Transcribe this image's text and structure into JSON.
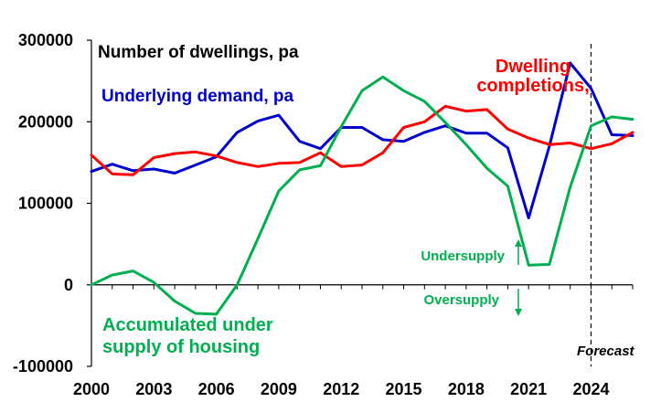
{
  "chart_data": {
    "type": "line",
    "title": "Number of dwellings, pa",
    "xlabel": "",
    "ylabel": "",
    "xlim": [
      2000,
      2026
    ],
    "ylim": [
      -100000,
      300000
    ],
    "x_ticks": [
      2000,
      2003,
      2006,
      2009,
      2012,
      2015,
      2018,
      2021,
      2024
    ],
    "y_ticks": [
      -100000,
      0,
      100000,
      200000,
      300000
    ],
    "forecast_line_x": 2024,
    "forecast_label": "Forecast",
    "x": [
      2000,
      2001,
      2002,
      2003,
      2004,
      2005,
      2006,
      2007,
      2008,
      2009,
      2010,
      2011,
      2012,
      2013,
      2014,
      2015,
      2016,
      2017,
      2018,
      2019,
      2020,
      2021,
      2022,
      2023,
      2024,
      2025,
      2026
    ],
    "series": [
      {
        "name": "Underlying demand, pa",
        "color": "#0000cc",
        "values": [
          139000,
          148000,
          140000,
          142000,
          137000,
          147000,
          157000,
          187000,
          201000,
          208000,
          176000,
          167000,
          193000,
          193000,
          178000,
          176000,
          187000,
          195000,
          186000,
          186000,
          168000,
          82000,
          170000,
          272000,
          241000,
          184000,
          183000
        ]
      },
      {
        "name": "Dwelling completions,",
        "color": "#ff0000",
        "values": [
          159000,
          136000,
          135000,
          156000,
          161000,
          163000,
          158000,
          150000,
          145000,
          149000,
          150000,
          162000,
          145000,
          147000,
          162000,
          193000,
          200000,
          219000,
          213000,
          215000,
          191000,
          180000,
          172000,
          174000,
          167000,
          173000,
          187000
        ]
      },
      {
        "name": "Accumulated under supply of housing",
        "color": "#00b050",
        "values": [
          0,
          12000,
          17000,
          3000,
          -20000,
          -35000,
          -36000,
          0,
          57000,
          115000,
          141000,
          146000,
          194000,
          238000,
          255000,
          238000,
          225000,
          199000,
          172000,
          143000,
          121000,
          24000,
          25000,
          120000,
          195000,
          206000,
          203000
        ]
      }
    ],
    "annotations": {
      "undersupply": "Undersupply",
      "oversupply": "Oversupply"
    },
    "legend": "inline-labels"
  }
}
